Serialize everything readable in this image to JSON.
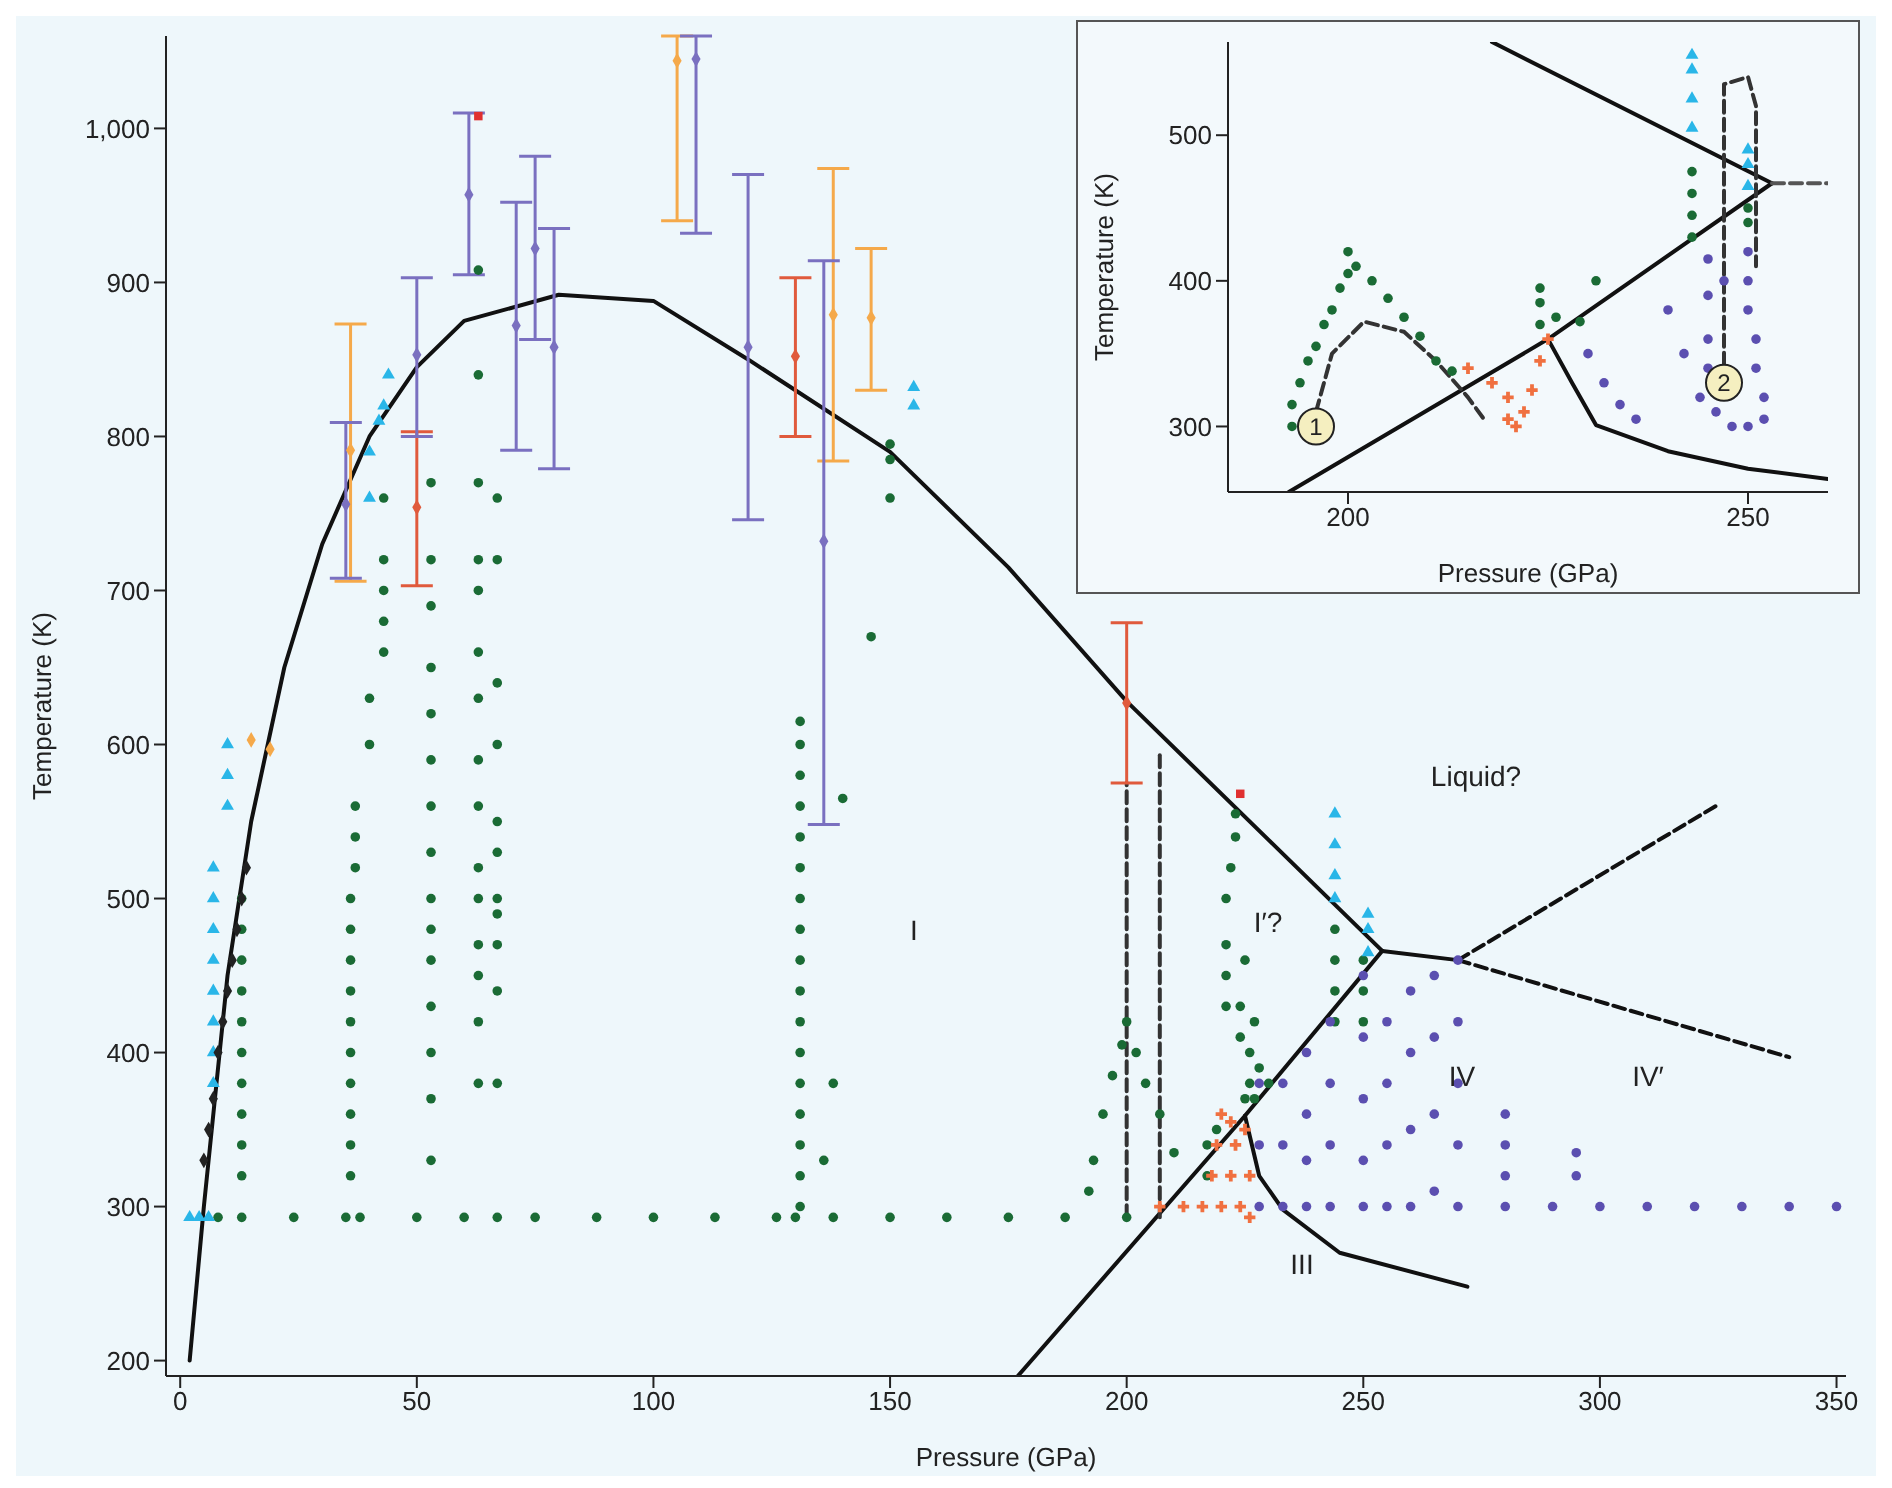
{
  "chart_data": [
    {
      "type": "scatter",
      "xlabel": "Pressure (GPa)",
      "ylabel": "Temperature (K)",
      "xlim": [
        -3,
        352
      ],
      "ylim": [
        190,
        1060
      ],
      "xticks": [
        0,
        50,
        100,
        150,
        200,
        250,
        300,
        350
      ],
      "yticks": [
        200,
        300,
        400,
        500,
        600,
        700,
        800,
        900,
        {
          "value": 1000,
          "label": "1,000"
        }
      ],
      "series": [
        {
          "type": "line",
          "color": "#111111",
          "x": [
            2,
            5,
            10,
            15,
            22,
            30,
            40,
            50,
            60,
            80,
            100,
            120,
            150,
            175,
            200,
            254
          ],
          "values": [
            200,
            300,
            450,
            550,
            650,
            730,
            800,
            845,
            875,
            892,
            888,
            850,
            790,
            715,
            628,
            466
          ]
        },
        {
          "type": "line",
          "color": "#111111",
          "x": [
            177,
            225,
            254
          ],
          "values": [
            190,
            359,
            466
          ]
        },
        {
          "type": "line",
          "color": "#111111",
          "x": [
            225,
            228,
            233,
            245,
            272
          ],
          "values": [
            359,
            320,
            298,
            270,
            248
          ]
        },
        {
          "type": "line",
          "color": "#111111",
          "x": [
            254,
            270
          ],
          "values": [
            466,
            460
          ]
        },
        {
          "type": "line",
          "color": "#111111",
          "line_style": "dashed",
          "x": [
            270,
            325
          ],
          "values": [
            460,
            561
          ]
        },
        {
          "type": "line",
          "color": "#111111",
          "line_style": "dashed",
          "x": [
            270,
            340
          ],
          "values": [
            460,
            397
          ]
        },
        {
          "type": "line",
          "color": "#333333",
          "line_style": "dashed",
          "x": [
            200,
            200
          ],
          "values": [
            293,
            575
          ]
        },
        {
          "type": "line",
          "color": "#333333",
          "line_style": "dashed",
          "x": [
            207,
            207
          ],
          "values": [
            293,
            593
          ]
        },
        {
          "type": "scatter",
          "marker": "circle",
          "color": "#1a6b35",
          "x": [
            8,
            13,
            24,
            35,
            38,
            50,
            60,
            67,
            75,
            88,
            100,
            113,
            126,
            130,
            138,
            150,
            162,
            175,
            187,
            200,
            13,
            13,
            13,
            13,
            13,
            13,
            13,
            13,
            13,
            13,
            36,
            36,
            36,
            36,
            36,
            36,
            36,
            36,
            36,
            36,
            37,
            37,
            37,
            40,
            40,
            43,
            43,
            43,
            43,
            43,
            53,
            53,
            53,
            53,
            53,
            53,
            53,
            53,
            53,
            53,
            53,
            53,
            53,
            53,
            53,
            63,
            63,
            63,
            63,
            63,
            63,
            63,
            63,
            63,
            63,
            63,
            63,
            63,
            63,
            63,
            67,
            67,
            67,
            67,
            67,
            67,
            67,
            67,
            67,
            67,
            67,
            131,
            131,
            131,
            131,
            131,
            131,
            131,
            131,
            131,
            131,
            131,
            131,
            131,
            131,
            131,
            131,
            131,
            136,
            138,
            140,
            146,
            150,
            150,
            150,
            192,
            193,
            195,
            197,
            199,
            200,
            202,
            204,
            207,
            210,
            221,
            221,
            221,
            221,
            222,
            223,
            223,
            224,
            224,
            225,
            226,
            226,
            227,
            227,
            228,
            230,
            225,
            217,
            217,
            219,
            244,
            244,
            244,
            244,
            250,
            250,
            250
          ],
          "values": [
            293,
            293,
            293,
            293,
            293,
            293,
            293,
            293,
            293,
            293,
            293,
            293,
            293,
            293,
            293,
            293,
            293,
            293,
            293,
            293,
            320,
            340,
            360,
            380,
            400,
            420,
            440,
            460,
            480,
            500,
            320,
            340,
            360,
            380,
            400,
            420,
            440,
            460,
            480,
            500,
            520,
            540,
            560,
            600,
            630,
            660,
            680,
            700,
            720,
            760,
            330,
            370,
            400,
            430,
            460,
            480,
            500,
            530,
            560,
            590,
            620,
            650,
            690,
            720,
            770,
            380,
            420,
            450,
            470,
            500,
            520,
            560,
            590,
            630,
            660,
            700,
            720,
            770,
            840,
            908,
            380,
            440,
            470,
            490,
            500,
            530,
            550,
            600,
            640,
            720,
            760,
            300,
            320,
            340,
            360,
            380,
            400,
            420,
            440,
            460,
            480,
            500,
            520,
            540,
            560,
            580,
            600,
            615,
            330,
            380,
            565,
            670,
            760,
            785,
            795,
            310,
            330,
            360,
            385,
            405,
            420,
            400,
            380,
            360,
            335,
            430,
            450,
            470,
            500,
            520,
            540,
            555,
            410,
            430,
            460,
            380,
            400,
            370,
            420,
            390,
            380,
            370,
            340,
            320,
            350,
            420,
            440,
            460,
            480,
            420,
            440,
            460
          ]
        },
        {
          "type": "scatter",
          "marker": "triangle",
          "color": "#29b6e8",
          "x": [
            2,
            4,
            6,
            7,
            7,
            7,
            7,
            7,
            7,
            7,
            7,
            10,
            10,
            10,
            40,
            40,
            42,
            43,
            44,
            155,
            155,
            244,
            244,
            244,
            244,
            251,
            251,
            251
          ],
          "values": [
            293,
            293,
            293,
            380,
            400,
            420,
            440,
            460,
            480,
            500,
            520,
            560,
            580,
            600,
            760,
            790,
            810,
            820,
            840,
            820,
            832,
            500,
            515,
            535,
            555,
            465,
            480,
            490
          ]
        },
        {
          "type": "scatter",
          "marker": "diamond",
          "color": "#222222",
          "x": [
            5,
            6,
            7,
            8,
            9,
            10,
            11,
            12,
            13,
            14
          ],
          "values": [
            330,
            350,
            370,
            400,
            420,
            440,
            460,
            480,
            500,
            520
          ]
        },
        {
          "type": "scatter",
          "marker": "cross",
          "color": "#f07040",
          "x": [
            207,
            212,
            216,
            220,
            224,
            226,
            218,
            222,
            226,
            219,
            223,
            225,
            220,
            222
          ],
          "values": [
            300,
            300,
            300,
            300,
            300,
            293,
            320,
            320,
            320,
            340,
            340,
            350,
            360,
            355
          ]
        },
        {
          "type": "scatter",
          "marker": "circle",
          "color": "#5b4fb0",
          "x": [
            228,
            228,
            228,
            233,
            233,
            233,
            238,
            238,
            238,
            238,
            243,
            243,
            243,
            243,
            250,
            250,
            250,
            250,
            250,
            255,
            255,
            255,
            255,
            260,
            260,
            260,
            260,
            265,
            265,
            265,
            265,
            270,
            270,
            270,
            270,
            270,
            280,
            280,
            280,
            280,
            290,
            300,
            310,
            320,
            330,
            340,
            350,
            295,
            295
          ],
          "values": [
            300,
            340,
            380,
            300,
            340,
            380,
            300,
            330,
            360,
            400,
            300,
            340,
            380,
            420,
            300,
            330,
            370,
            410,
            450,
            300,
            340,
            380,
            420,
            300,
            350,
            400,
            440,
            310,
            360,
            410,
            450,
            300,
            340,
            380,
            420,
            460,
            300,
            320,
            340,
            360,
            300,
            300,
            300,
            300,
            300,
            300,
            300,
            320,
            335
          ]
        },
        {
          "type": "scatter",
          "marker": "square",
          "color": "#e03030",
          "x": [
            63,
            224
          ],
          "values": [
            1008,
            568
          ]
        },
        {
          "type": "scatter",
          "marker": "diamond",
          "color": "#f5a94a",
          "x": [
            36,
            105,
            138,
            146,
            15,
            19
          ],
          "values": [
            791,
            1044,
            879,
            877,
            603,
            597
          ],
          "errors": [
            [
              706,
              873
            ],
            [
              940,
              1060
            ],
            [
              784,
              974
            ],
            [
              830,
              922
            ],
            null,
            null
          ]
        },
        {
          "type": "scatter",
          "marker": "diamond",
          "color": "#e05a3c",
          "x": [
            50,
            130,
            200
          ],
          "values": [
            754,
            852,
            627
          ],
          "errors": [
            [
              703,
              803
            ],
            [
              800,
              903
            ],
            [
              575,
              679
            ]
          ]
        },
        {
          "type": "scatter",
          "marker": "diamond",
          "color": "#7a70c0",
          "x": [
            35,
            50,
            61,
            71,
            75,
            79,
            109,
            120,
            136
          ],
          "values": [
            756,
            853,
            957,
            872,
            922,
            858,
            1045,
            858,
            732
          ],
          "errors": [
            [
              708,
              809
            ],
            [
              800,
              903
            ],
            [
              905,
              1010
            ],
            [
              791,
              952
            ],
            [
              863,
              982
            ],
            [
              779,
              935
            ],
            [
              932,
              1060
            ],
            [
              746,
              970
            ],
            [
              548,
              914
            ]
          ]
        }
      ],
      "annotations": [
        "I",
        "I′?",
        "III",
        "IV",
        "IV′",
        "Liquid?"
      ]
    },
    {
      "type": "scatter",
      "xlabel": "Pressure (GPa)",
      "ylabel": "Temperature (K)",
      "xlim": [
        185,
        260
      ],
      "ylim": [
        255,
        564
      ],
      "xticks": [
        200,
        250
      ],
      "yticks": [
        300,
        400,
        500
      ],
      "series": [
        {
          "type": "line",
          "color": "#111111",
          "x": [
            192.6,
            225,
            253
          ],
          "values": [
            255,
            360,
            467
          ]
        },
        {
          "type": "line",
          "color": "#111111",
          "x": [
            218,
            253
          ],
          "values": [
            564,
            467
          ]
        },
        {
          "type": "line",
          "color": "#111111",
          "x": [
            225,
            228,
            231,
            240,
            250,
            260
          ],
          "values": [
            360,
            330,
            301,
            283,
            271,
            264
          ]
        },
        {
          "type": "line",
          "color": "#555555",
          "line_style": "dashed",
          "x": [
            253,
            260
          ],
          "values": [
            467,
            467
          ]
        },
        {
          "type": "line",
          "color": "#333333",
          "line_style": "dashed",
          "x": [
            196,
            198,
            202,
            207,
            211,
            215,
            217
          ],
          "values": [
            310,
            350,
            372,
            365,
            345,
            320,
            305
          ]
        },
        {
          "type": "line",
          "color": "#333333",
          "line_style": "dashed",
          "x": [
            247,
            247,
            250,
            251,
            251
          ],
          "values": [
            330,
            535,
            540,
            520,
            410
          ]
        },
        {
          "type": "scatter",
          "marker": "circle",
          "color": "#1a6b35",
          "x": [
            193,
            193,
            194,
            195,
            196,
            197,
            198,
            199,
            200,
            200,
            201,
            203,
            205,
            207,
            209,
            211,
            213,
            224,
            224,
            224,
            226,
            229,
            231,
            243,
            243,
            243,
            243,
            250,
            250
          ],
          "values": [
            300,
            315,
            330,
            345,
            355,
            370,
            380,
            395,
            405,
            420,
            410,
            400,
            388,
            375,
            362,
            345,
            338,
            395,
            385,
            370,
            375,
            372,
            400,
            475,
            460,
            445,
            430,
            450,
            440
          ]
        },
        {
          "type": "scatter",
          "marker": "triangle",
          "color": "#29b6e8",
          "x": [
            243,
            243,
            243,
            243,
            250,
            250,
            250
          ],
          "values": [
            555,
            545,
            525,
            505,
            490,
            480,
            465
          ]
        },
        {
          "type": "scatter",
          "marker": "cross",
          "color": "#f07040",
          "x": [
            215,
            218,
            220,
            220,
            221,
            222,
            223,
            224,
            225
          ],
          "values": [
            340,
            330,
            320,
            305,
            300,
            310,
            325,
            345,
            360
          ]
        },
        {
          "type": "scatter",
          "marker": "circle",
          "color": "#5b4fb0",
          "x": [
            230,
            232,
            234,
            236,
            240,
            242,
            245,
            245,
            245,
            250,
            250,
            250,
            251,
            251,
            252,
            244,
            246,
            248,
            250,
            252,
            247,
            245
          ],
          "values": [
            350,
            330,
            315,
            305,
            380,
            350,
            340,
            360,
            390,
            420,
            400,
            380,
            360,
            340,
            320,
            320,
            310,
            300,
            300,
            305,
            400,
            415
          ]
        }
      ],
      "annotations": [
        {
          "text": "1",
          "x": 196,
          "y": 300
        },
        {
          "text": "2",
          "x": 247,
          "y": 330
        }
      ]
    }
  ]
}
